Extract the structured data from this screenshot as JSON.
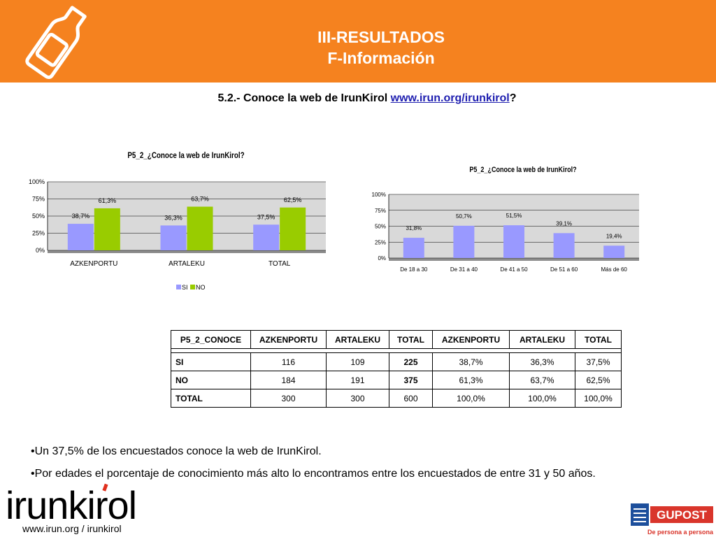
{
  "header": {
    "title_line1": "III-RESULTADOS",
    "title_line2": "F-Información"
  },
  "subtitle": {
    "text": "5.2.- Conoce la web de IrunKirol ",
    "link": "www.irun.org/irunkirol",
    "suffix": "?"
  },
  "chart_data": [
    {
      "type": "bar",
      "title": "P5_2_¿Conoce la web de IrunKirol?",
      "categories": [
        "AZKENPORTU",
        "ARTALEKU",
        "TOTAL"
      ],
      "series": [
        {
          "name": "SI",
          "values": [
            38.7,
            36.3,
            37.5
          ],
          "labels": [
            "38,7%",
            "36,3%",
            "37,5%"
          ],
          "color": "#9999ff"
        },
        {
          "name": "NO",
          "values": [
            61.3,
            63.7,
            62.5
          ],
          "labels": [
            "61,3%",
            "63,7%",
            "62,5%"
          ],
          "color": "#99cc00"
        }
      ],
      "ylim": [
        0,
        100
      ],
      "yticks": [
        "0%",
        "25%",
        "50%",
        "75%",
        "100%"
      ],
      "legend": "bottom"
    },
    {
      "type": "bar",
      "title": "P5_2_¿Conoce la web de IrunKirol?",
      "categories": [
        "De 18 a 30",
        "De 31 a 40",
        "De 41 a 50",
        "De 51 a 60",
        "Más de 60"
      ],
      "series": [
        {
          "values": [
            31.8,
            50.7,
            51.5,
            39.1,
            19.4
          ],
          "labels": [
            "31,8%",
            "50,7%",
            "51,5%",
            "39,1%",
            "19,4%"
          ],
          "color": "#9999ff"
        }
      ],
      "ylim": [
        0,
        100
      ],
      "yticks": [
        "0%",
        "25%",
        "50%",
        "75%",
        "100%"
      ]
    }
  ],
  "table": {
    "headers": [
      "P5_2_CONOCE",
      "AZKENPORTU",
      "ARTALEKU",
      "TOTAL",
      "AZKENPORTU",
      "ARTALEKU",
      "TOTAL"
    ],
    "rows": [
      [
        "SI",
        "116",
        "109",
        "225",
        "38,7%",
        "36,3%",
        "37,5%"
      ],
      [
        "NO",
        "184",
        "191",
        "375",
        "61,3%",
        "63,7%",
        "62,5%"
      ],
      [
        "TOTAL",
        "300",
        "300",
        "600",
        "100,0%",
        "100,0%",
        "100,0%"
      ]
    ]
  },
  "bullets": [
    "•Un 37,5% de los encuestados conoce la web de IrunKirol.",
    "•Por edades el porcentaje de conocimiento más alto lo encontramos entre los encuestados de entre 31 y 50 años."
  ],
  "footer": {
    "logo_text": "irunkirol",
    "url": "www.irun.org / irunkirol",
    "gupost": "GUPOST",
    "gupost_tagline": "De persona a persona"
  },
  "colors": {
    "orange": "#f5821f",
    "si": "#9999ff",
    "no": "#99cc00",
    "gupost_red": "#d9352b",
    "gupost_blue": "#1d4f9c"
  }
}
